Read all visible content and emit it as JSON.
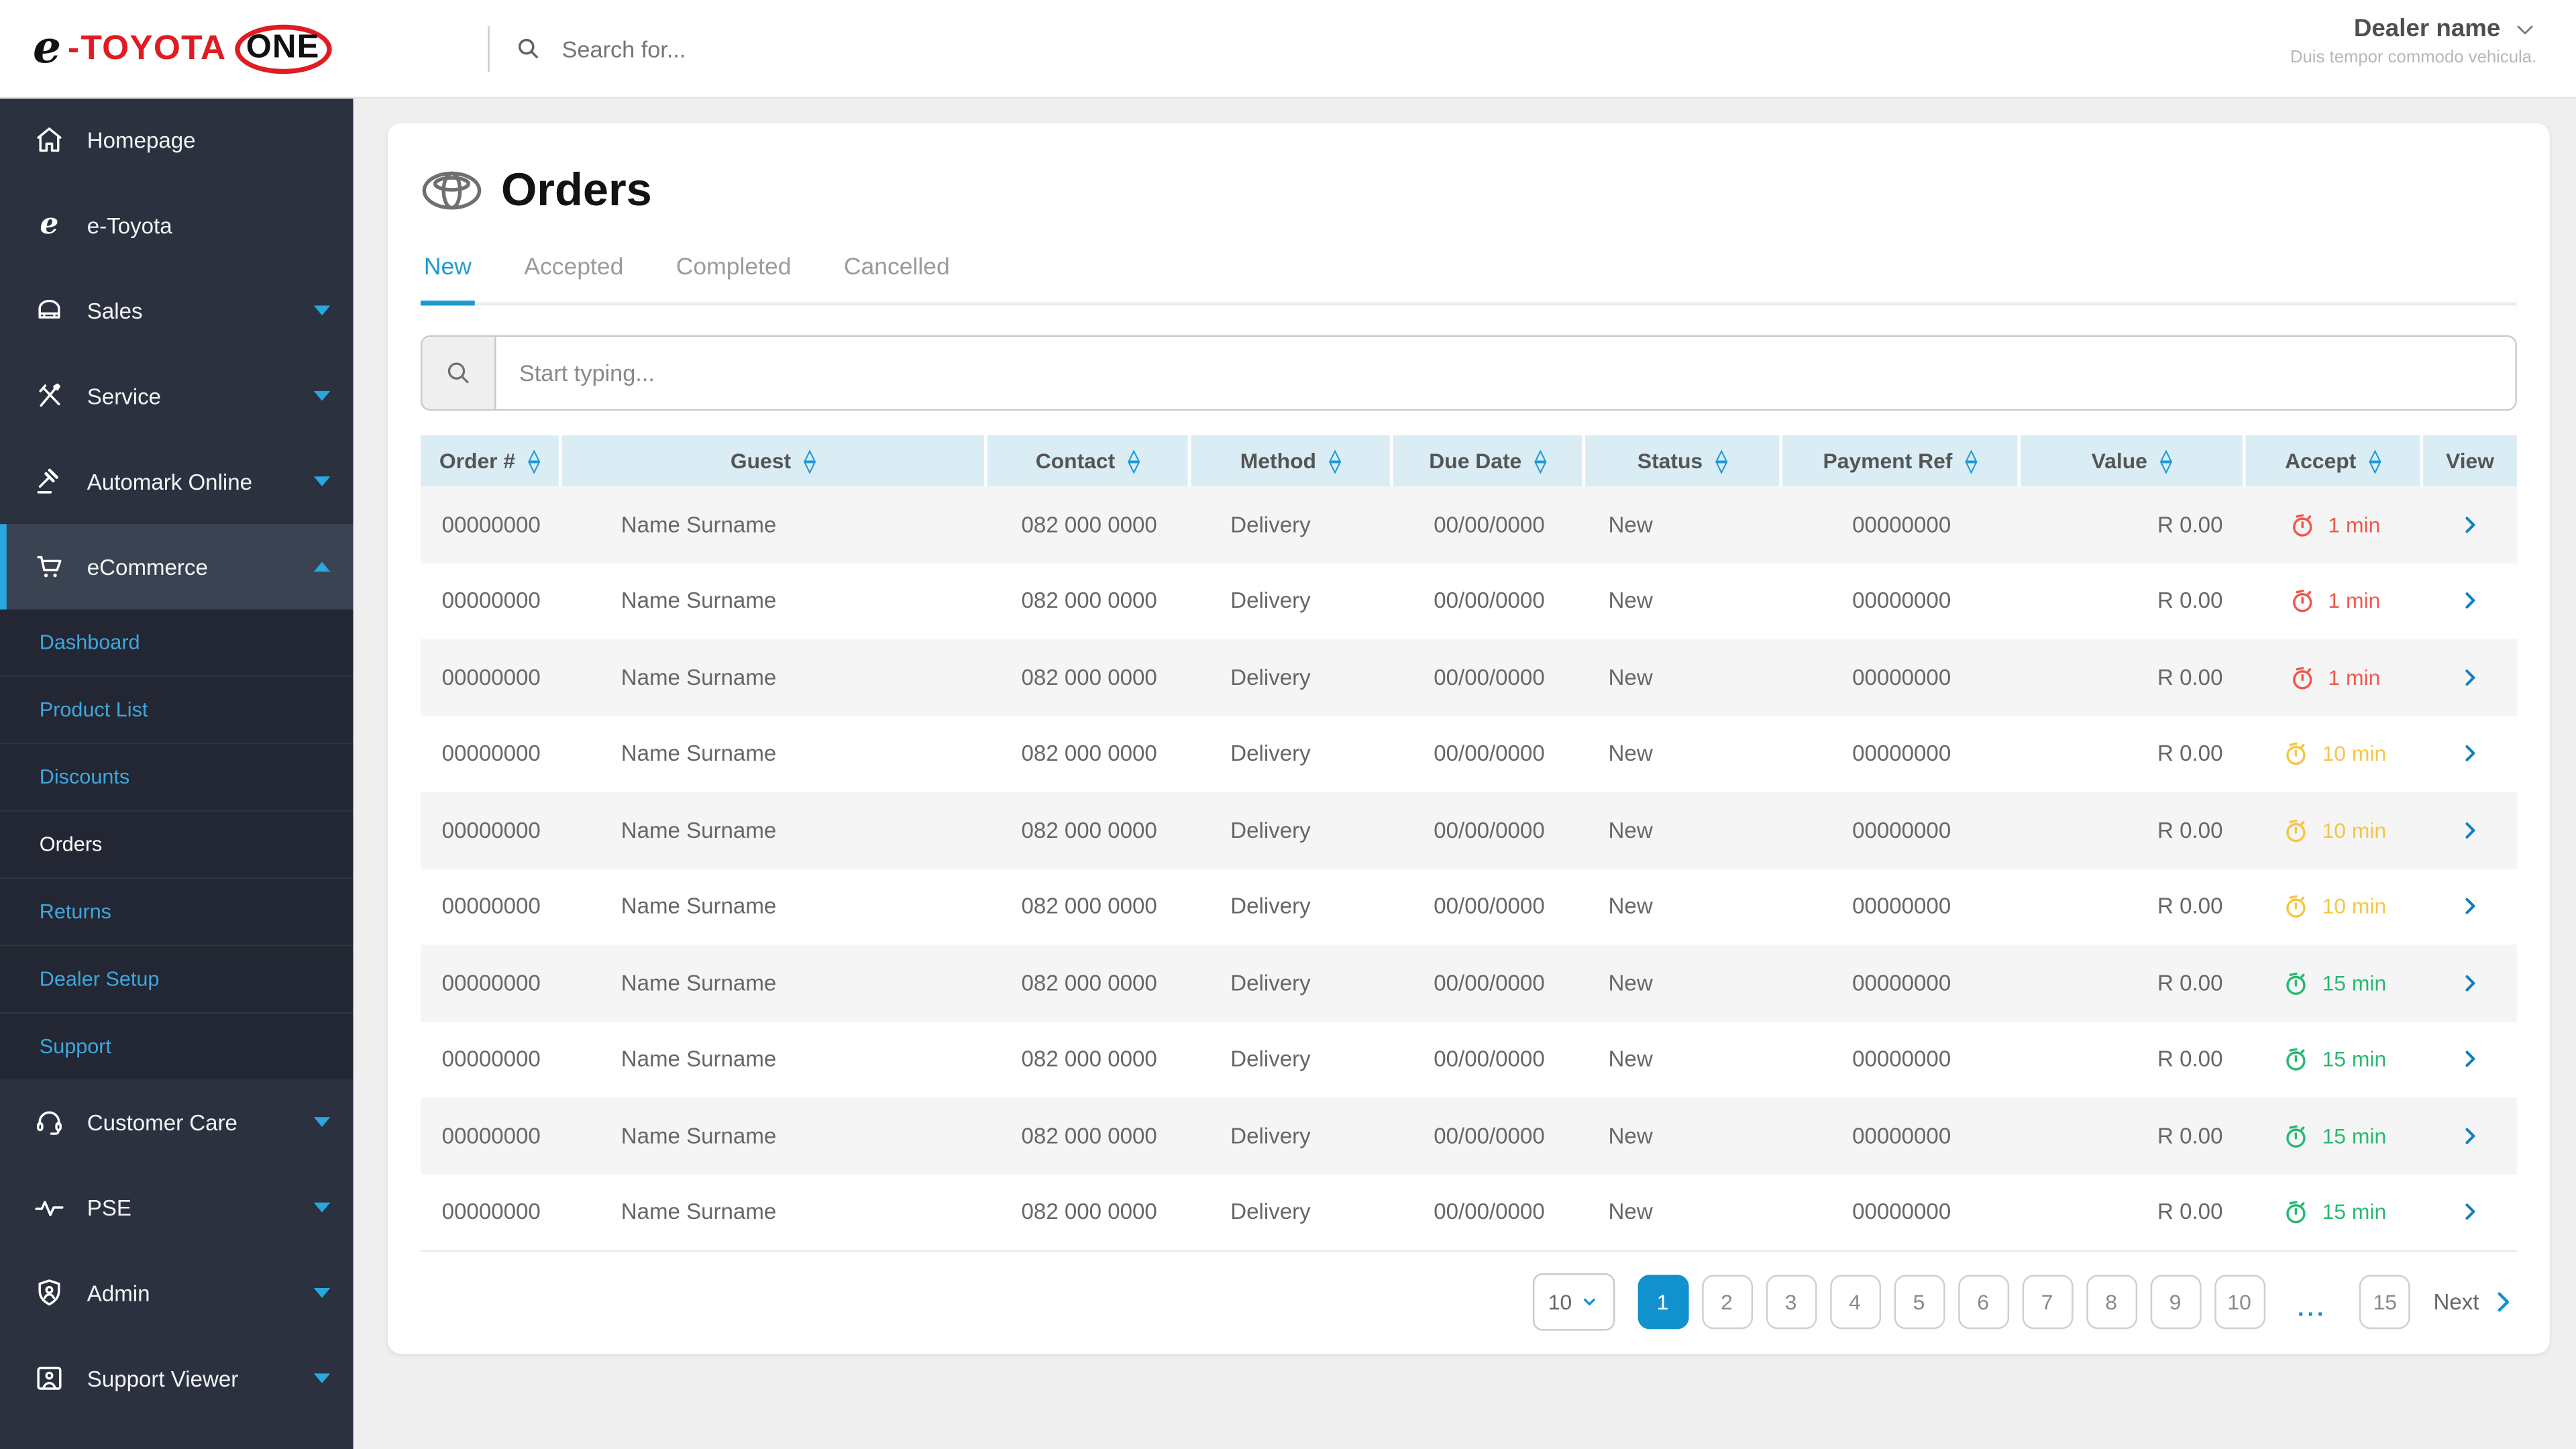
{
  "colors": {
    "accent": "#1c9ad6",
    "link_blue": "#3fa7dc",
    "chevron_blue": "#29a8df",
    "toyota_red": "#e11b22",
    "sidebar_bg": "#2b313f",
    "table_header_bg": "#daecf4",
    "pagination_active": "#1191cd",
    "timer_danger": "#f2564d",
    "timer_warning": "#f6c544",
    "timer_success": "#28b971"
  },
  "header": {
    "logo": {
      "e": "e",
      "dash": "-",
      "toyota": "TOYOTA",
      "one": "ONE"
    },
    "search_placeholder": "Search for...",
    "dealer_name": "Dealer name",
    "dealer_subtitle": "Duis tempor commodo vehicula."
  },
  "sidebar": {
    "main_items": [
      {
        "label": "Homepage",
        "icon": "home-icon",
        "expandable": false
      },
      {
        "label": "e-Toyota",
        "icon": "e-toyota-icon",
        "expandable": false
      },
      {
        "label": "Sales",
        "icon": "car-icon",
        "expandable": true
      },
      {
        "label": "Service",
        "icon": "tools-icon",
        "expandable": true
      },
      {
        "label": "Automark Online",
        "icon": "gavel-icon",
        "expandable": true
      },
      {
        "label": "eCommerce",
        "icon": "cart-icon",
        "expandable": true,
        "expanded": true,
        "active": true
      }
    ],
    "submenu": [
      {
        "label": "Dashboard"
      },
      {
        "label": "Product List"
      },
      {
        "label": "Discounts"
      },
      {
        "label": "Orders",
        "active": true
      },
      {
        "label": "Returns"
      },
      {
        "label": "Dealer Setup"
      },
      {
        "label": "Support"
      }
    ],
    "bottom_items": [
      {
        "label": "Customer Care",
        "icon": "headset-icon",
        "expandable": true
      },
      {
        "label": "PSE",
        "icon": "pulse-icon",
        "expandable": true
      },
      {
        "label": "Admin",
        "icon": "shield-user-icon",
        "expandable": true
      },
      {
        "label": "Support Viewer",
        "icon": "user-card-icon",
        "expandable": true
      }
    ]
  },
  "page": {
    "title": "Orders",
    "tabs": [
      {
        "label": "New",
        "active": true
      },
      {
        "label": "Accepted",
        "active": false
      },
      {
        "label": "Completed",
        "active": false
      },
      {
        "label": "Cancelled",
        "active": false
      }
    ],
    "filter_placeholder": "Start typing..."
  },
  "table": {
    "columns": [
      {
        "label": "Order #",
        "sortable": true
      },
      {
        "label": "Guest",
        "sortable": true
      },
      {
        "label": "Contact",
        "sortable": true
      },
      {
        "label": "Method",
        "sortable": true
      },
      {
        "label": "Due Date",
        "sortable": true
      },
      {
        "label": "Status",
        "sortable": true
      },
      {
        "label": "Payment Ref",
        "sortable": true
      },
      {
        "label": "Value",
        "sortable": true
      },
      {
        "label": "Accept",
        "sortable": true
      },
      {
        "label": "View",
        "sortable": false
      }
    ],
    "rows": [
      {
        "order": "00000000",
        "guest": "Name Surname",
        "contact": "082 000 0000",
        "method": "Delivery",
        "due_date": "00/00/0000",
        "status": "New",
        "payment_ref": "00000000",
        "value": "R 0.00",
        "accept": "1 min",
        "accept_level": "danger"
      },
      {
        "order": "00000000",
        "guest": "Name Surname",
        "contact": "082 000 0000",
        "method": "Delivery",
        "due_date": "00/00/0000",
        "status": "New",
        "payment_ref": "00000000",
        "value": "R 0.00",
        "accept": "1 min",
        "accept_level": "danger"
      },
      {
        "order": "00000000",
        "guest": "Name Surname",
        "contact": "082 000 0000",
        "method": "Delivery",
        "due_date": "00/00/0000",
        "status": "New",
        "payment_ref": "00000000",
        "value": "R 0.00",
        "accept": "1 min",
        "accept_level": "danger"
      },
      {
        "order": "00000000",
        "guest": "Name Surname",
        "contact": "082 000 0000",
        "method": "Delivery",
        "due_date": "00/00/0000",
        "status": "New",
        "payment_ref": "00000000",
        "value": "R 0.00",
        "accept": "10 min",
        "accept_level": "warning"
      },
      {
        "order": "00000000",
        "guest": "Name Surname",
        "contact": "082 000 0000",
        "method": "Delivery",
        "due_date": "00/00/0000",
        "status": "New",
        "payment_ref": "00000000",
        "value": "R 0.00",
        "accept": "10 min",
        "accept_level": "warning"
      },
      {
        "order": "00000000",
        "guest": "Name Surname",
        "contact": "082 000 0000",
        "method": "Delivery",
        "due_date": "00/00/0000",
        "status": "New",
        "payment_ref": "00000000",
        "value": "R 0.00",
        "accept": "10 min",
        "accept_level": "warning"
      },
      {
        "order": "00000000",
        "guest": "Name Surname",
        "contact": "082 000 0000",
        "method": "Delivery",
        "due_date": "00/00/0000",
        "status": "New",
        "payment_ref": "00000000",
        "value": "R 0.00",
        "accept": "15 min",
        "accept_level": "success"
      },
      {
        "order": "00000000",
        "guest": "Name Surname",
        "contact": "082 000 0000",
        "method": "Delivery",
        "due_date": "00/00/0000",
        "status": "New",
        "payment_ref": "00000000",
        "value": "R 0.00",
        "accept": "15 min",
        "accept_level": "success"
      },
      {
        "order": "00000000",
        "guest": "Name Surname",
        "contact": "082 000 0000",
        "method": "Delivery",
        "due_date": "00/00/0000",
        "status": "New",
        "payment_ref": "00000000",
        "value": "R 0.00",
        "accept": "15 min",
        "accept_level": "success"
      },
      {
        "order": "00000000",
        "guest": "Name Surname",
        "contact": "082 000 0000",
        "method": "Delivery",
        "due_date": "00/00/0000",
        "status": "New",
        "payment_ref": "00000000",
        "value": "R 0.00",
        "accept": "15 min",
        "accept_level": "success"
      }
    ]
  },
  "pagination": {
    "page_size": "10",
    "pages": [
      "1",
      "2",
      "3",
      "4",
      "5",
      "6",
      "7",
      "8",
      "9",
      "10"
    ],
    "active_page": "1",
    "ellipsis": "...",
    "far_page": "15",
    "next_label": "Next"
  }
}
